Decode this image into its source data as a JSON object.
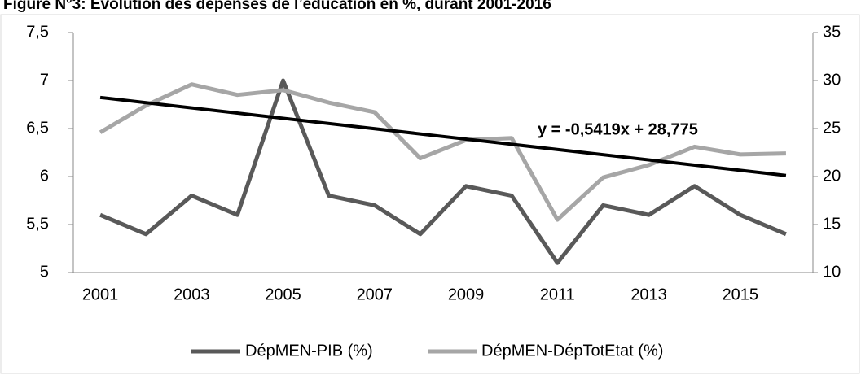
{
  "chart_data": {
    "type": "line",
    "title": "Figure N°3: Evolution des dépenses de l’éducation en %, durant 2001-2016",
    "categories": [
      "2001",
      null,
      "2003",
      null,
      "2005",
      null,
      "2007",
      null,
      "2009",
      null,
      "2011",
      null,
      "2013",
      null,
      "2015",
      null
    ],
    "series": [
      {
        "name": "DépMEN-PIB (%)",
        "color": "#595959",
        "values": [
          5.6,
          5.4,
          5.8,
          5.6,
          7.0,
          5.8,
          5.7,
          5.4,
          5.9,
          5.8,
          5.1,
          5.7,
          5.6,
          5.9,
          5.6,
          5.4
        ]
      },
      {
        "name": "DépMEN-DépTotEtat (%)",
        "color": "#a6a6a6",
        "axis": "y2",
        "values": [
          24.6,
          27.4,
          29.6,
          28.5,
          29.0,
          27.7,
          26.7,
          21.9,
          23.8,
          24.0,
          15.5,
          19.9,
          21.2,
          23.1,
          22.3,
          22.4
        ]
      }
    ],
    "trendline": {
      "label": "y = -0,5419x + 28,775",
      "slope": -0.5419,
      "intercept": 28.775,
      "color": "#000000",
      "axis": "y2"
    },
    "ylim": [
      5,
      7.5
    ],
    "yticks": [
      5,
      {
        "value": 5.5,
        "label": "5,5"
      },
      6,
      {
        "value": 6.5,
        "label": "6,5"
      },
      7,
      {
        "value": 7.5,
        "label": "7,5"
      }
    ],
    "y2lim": [
      10,
      35
    ],
    "y2ticks": [
      10,
      15,
      20,
      25,
      30,
      35
    ],
    "legend": "bottom"
  }
}
